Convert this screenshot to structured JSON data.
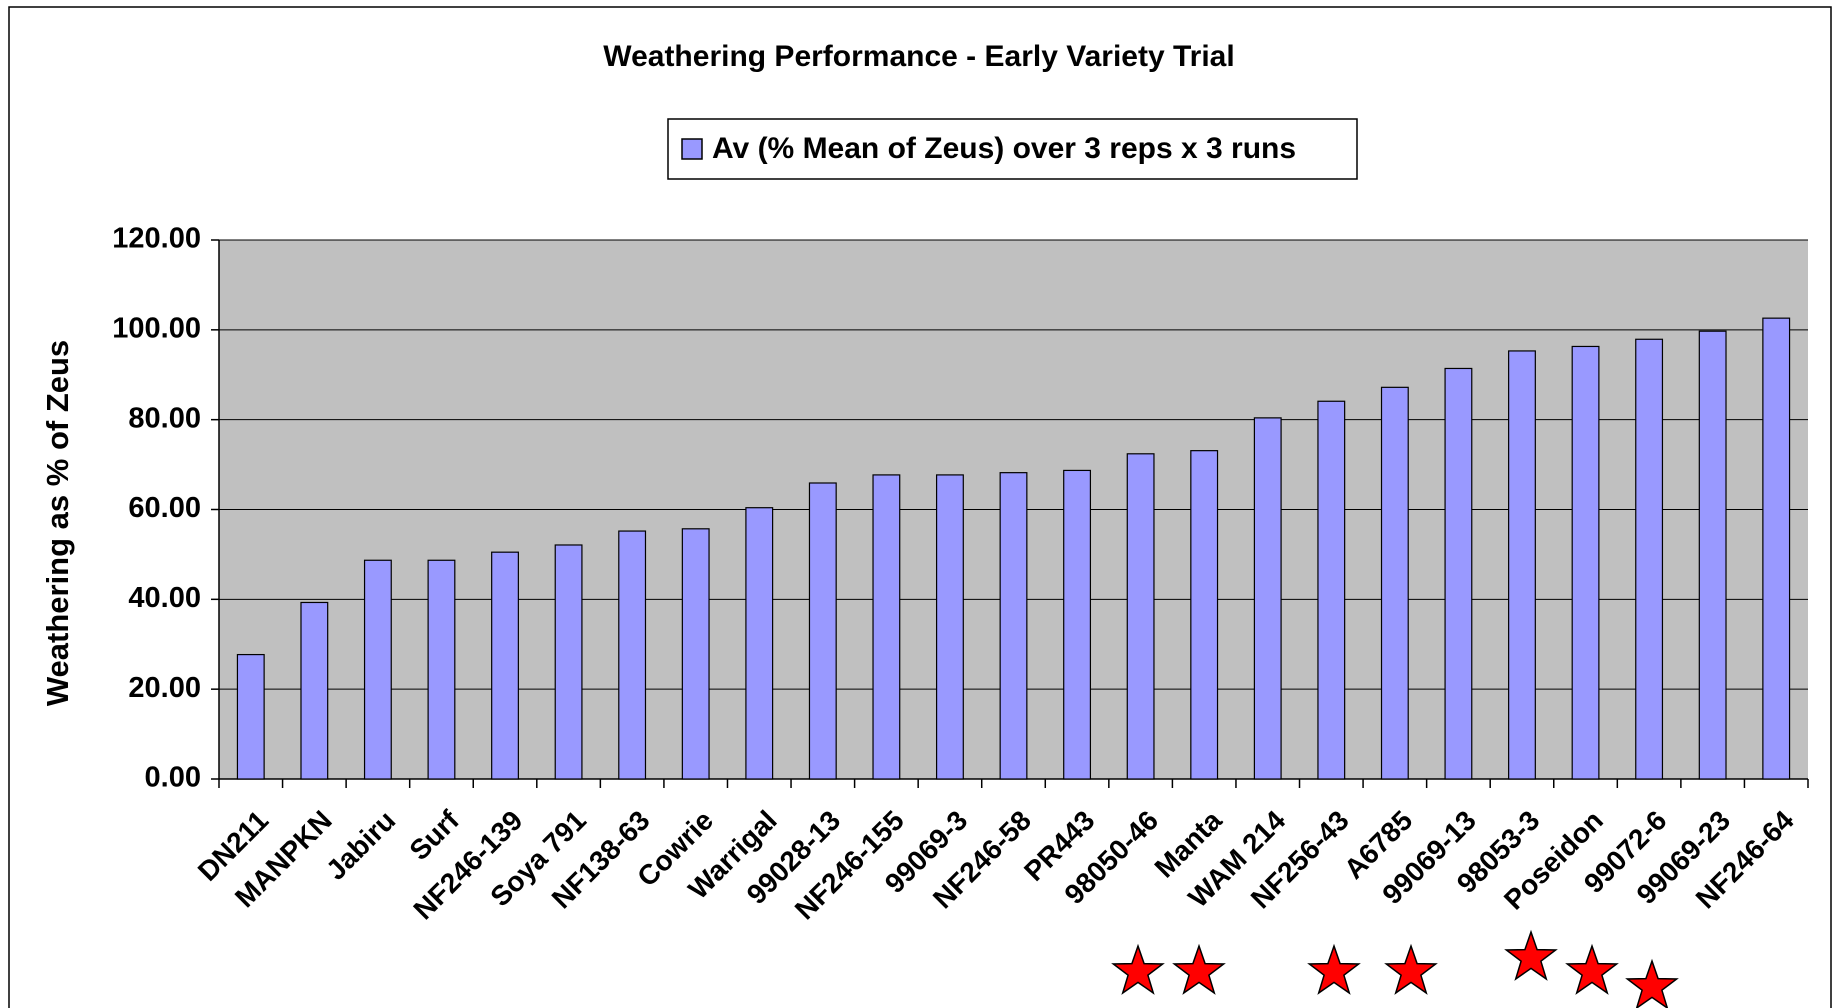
{
  "chart_data": {
    "type": "bar",
    "title": "Weathering Performance - Early Variety Trial",
    "y_label": "Weathering as % of Zeus",
    "series": [
      {
        "name": "Av (% Mean of Zeus) over 3 reps x 3 runs",
        "color": "#9999ff",
        "values": [
          27.7,
          39.3,
          48.7,
          48.7,
          50.5,
          52.1,
          55.2,
          55.7,
          60.4,
          65.9,
          67.7,
          67.7,
          68.2,
          68.7,
          72.4,
          73.1,
          80.4,
          84.1,
          87.2,
          91.4,
          95.3,
          96.3,
          97.9,
          99.7,
          102.6
        ]
      }
    ],
    "categories": [
      "DN211",
      "MANPKN",
      "Jabiru",
      "Surf",
      "NF246-139",
      "Soya 791",
      "NF138-63",
      "Cowrie",
      "Warrigal",
      "99028-13",
      "NF246-155",
      "99069-3",
      "NF246-58",
      "PR443",
      "98050-46",
      "Manta",
      "WAM 214",
      "NF256-43",
      "A6785",
      "99069-13",
      "98053-3",
      "Poseidon",
      "99072-6",
      "99069-23",
      "NF246-64"
    ],
    "ylim": [
      0,
      120
    ],
    "yticks": [
      {
        "value": 0,
        "label": "0.00"
      },
      {
        "value": 20,
        "label": "20.00"
      },
      {
        "value": 40,
        "label": "40.00"
      },
      {
        "value": 60,
        "label": "60.00"
      },
      {
        "value": 80,
        "label": "80.00"
      },
      {
        "value": 100,
        "label": "100.00"
      },
      {
        "value": 120,
        "label": "120.00"
      }
    ],
    "grid": true,
    "legend": "top"
  }
}
